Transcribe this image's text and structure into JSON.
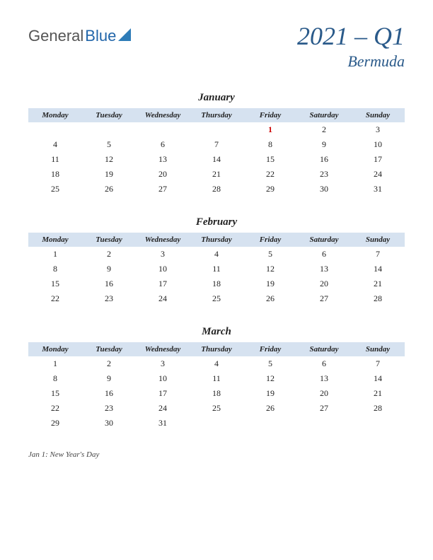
{
  "logo": {
    "part1": "General",
    "part2": "Blue"
  },
  "title": {
    "main": "2021 – Q1",
    "sub": "Bermuda"
  },
  "colors": {
    "header_bg": "#d6e2f0",
    "title_color": "#2a5a8a",
    "holiday_color": "#cc0000",
    "text_color": "#222222",
    "background": "#ffffff"
  },
  "typography": {
    "title_fontsize": 36,
    "subtitle_fontsize": 22,
    "month_fontsize": 15,
    "header_fontsize": 11,
    "cell_fontsize": 12,
    "footnote_fontsize": 11
  },
  "day_headers": [
    "Monday",
    "Tuesday",
    "Wednesday",
    "Thursday",
    "Friday",
    "Saturday",
    "Sunday"
  ],
  "months": [
    {
      "name": "January",
      "weeks": [
        [
          "",
          "",
          "",
          "",
          "1",
          "2",
          "3"
        ],
        [
          "4",
          "5",
          "6",
          "7",
          "8",
          "9",
          "10"
        ],
        [
          "11",
          "12",
          "13",
          "14",
          "15",
          "16",
          "17"
        ],
        [
          "18",
          "19",
          "20",
          "21",
          "22",
          "23",
          "24"
        ],
        [
          "25",
          "26",
          "27",
          "28",
          "29",
          "30",
          "31"
        ]
      ],
      "holidays": [
        [
          0,
          4
        ]
      ]
    },
    {
      "name": "February",
      "weeks": [
        [
          "1",
          "2",
          "3",
          "4",
          "5",
          "6",
          "7"
        ],
        [
          "8",
          "9",
          "10",
          "11",
          "12",
          "13",
          "14"
        ],
        [
          "15",
          "16",
          "17",
          "18",
          "19",
          "20",
          "21"
        ],
        [
          "22",
          "23",
          "24",
          "25",
          "26",
          "27",
          "28"
        ]
      ],
      "holidays": []
    },
    {
      "name": "March",
      "weeks": [
        [
          "1",
          "2",
          "3",
          "4",
          "5",
          "6",
          "7"
        ],
        [
          "8",
          "9",
          "10",
          "11",
          "12",
          "13",
          "14"
        ],
        [
          "15",
          "16",
          "17",
          "18",
          "19",
          "20",
          "21"
        ],
        [
          "22",
          "23",
          "24",
          "25",
          "26",
          "27",
          "28"
        ],
        [
          "29",
          "30",
          "31",
          "",
          "",
          "",
          ""
        ]
      ],
      "holidays": []
    }
  ],
  "footnote": "Jan 1: New Year's Day"
}
